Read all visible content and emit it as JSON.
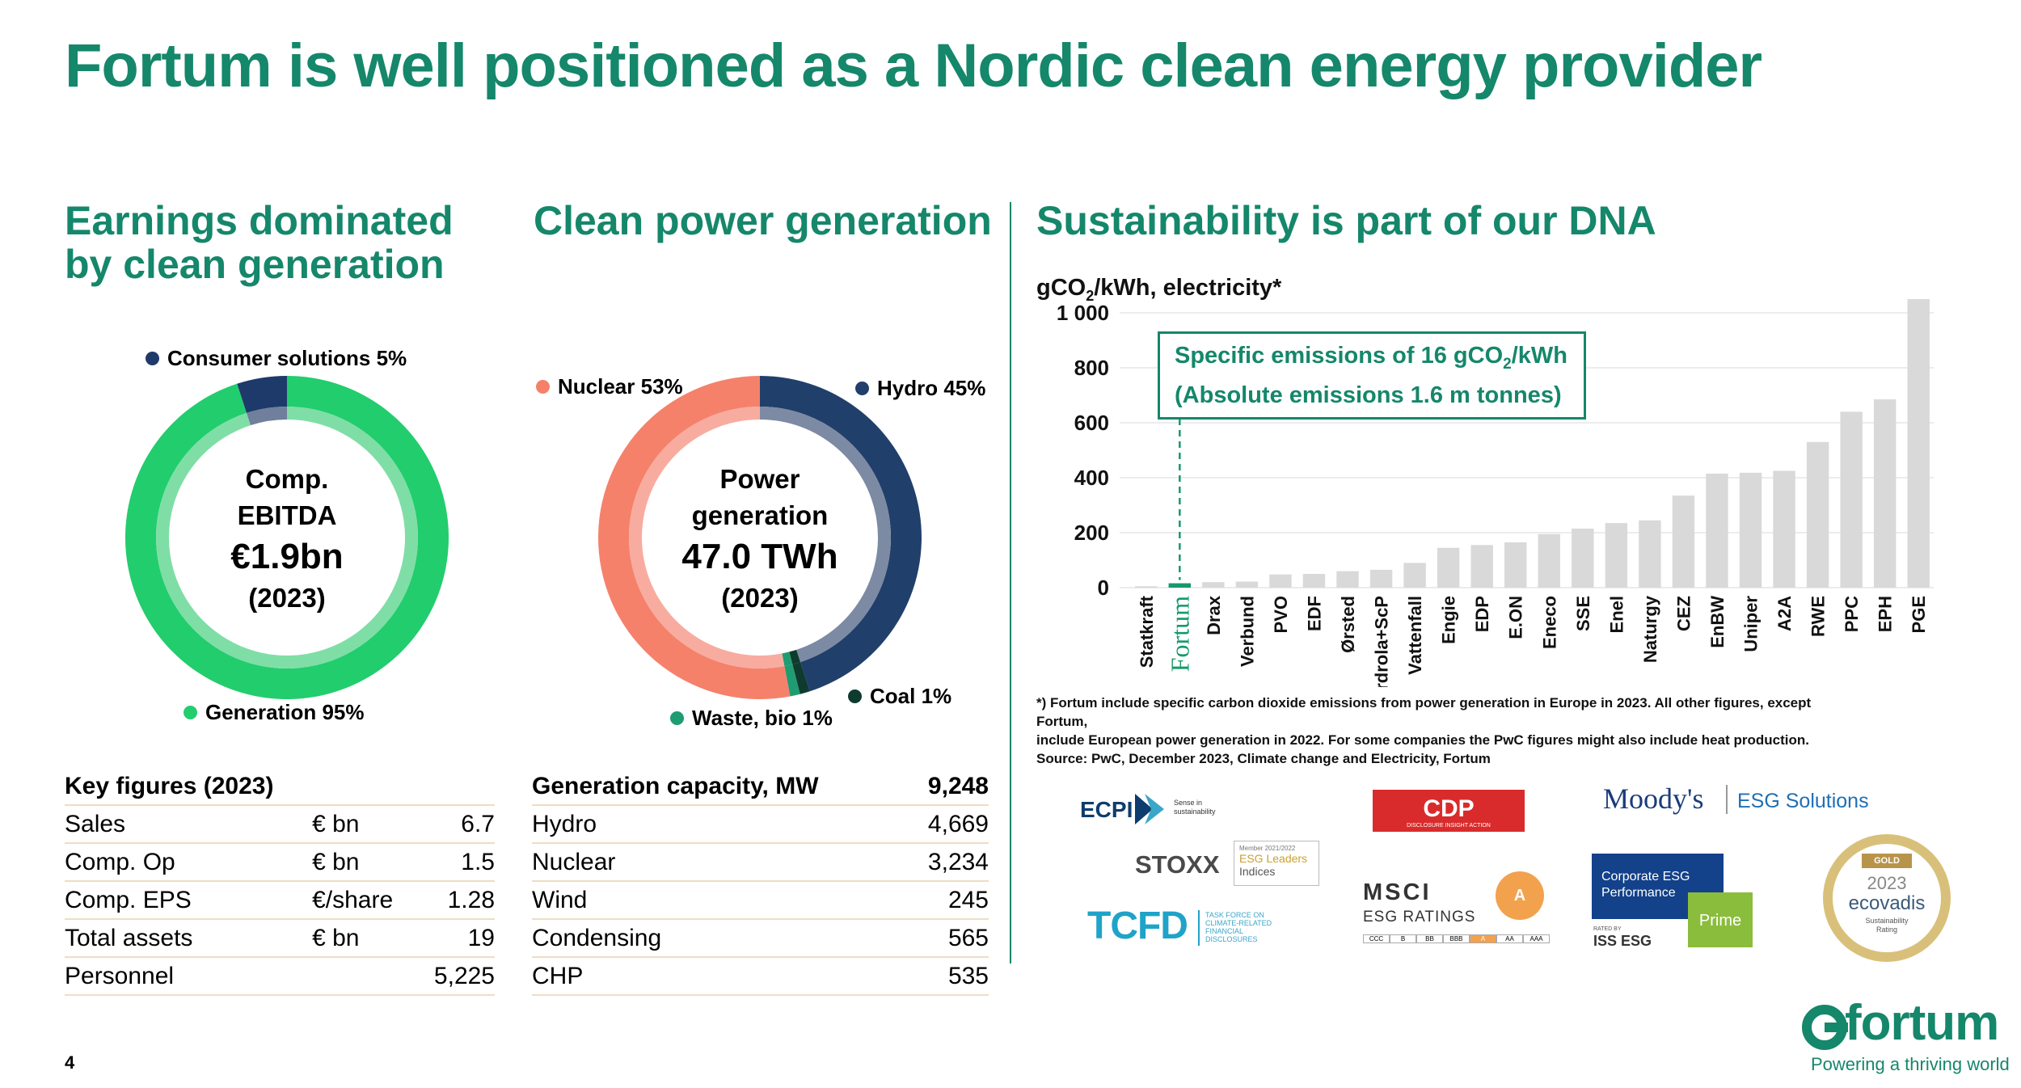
{
  "page": {
    "title": "Fortum is well positioned as a Nordic clean energy provider",
    "page_number": "4"
  },
  "colors": {
    "brand_green": "#15876b",
    "generation": "#22cd6d",
    "generation_light": "#7fdea6",
    "consumer": "#1e3a6a",
    "consumer_light": "#6f7f9c",
    "nuclear": "#f5816b",
    "nuclear_light": "#f8aca0",
    "hydro": "#213f6b",
    "hydro_light": "#7c8aa3",
    "waste_bio": "#1f9c72",
    "coal": "#0e3b2e",
    "bar": "#d9d9d9",
    "fortum_bar": "#159a6a"
  },
  "earnings": {
    "title_line1": "Earnings dominated",
    "title_line2": "by clean generation",
    "center_line1": "Comp.",
    "center_line2": "EBITDA",
    "center_value": "€1.9bn",
    "center_year": "(2023)",
    "legend_consumer": "Consumer solutions 5%",
    "legend_generation": "Generation 95%"
  },
  "clean_power": {
    "title": "Clean power generation",
    "center_line1": "Power",
    "center_line2": "generation",
    "center_value": "47.0 TWh",
    "center_year": "(2023)",
    "legend_nuclear": "Nuclear 53%",
    "legend_hydro": "Hydro 45%",
    "legend_coal": "Coal 1%",
    "legend_waste": "Waste, bio 1%"
  },
  "key_figures": {
    "header": "Key figures (2023)",
    "rows": [
      {
        "label": "Sales",
        "unit": "€ bn",
        "value": "6.7"
      },
      {
        "label": "Comp. Op",
        "unit": "€ bn",
        "value": "1.5"
      },
      {
        "label": "Comp. EPS",
        "unit": "€/share",
        "value": "1.28"
      },
      {
        "label": "Total assets",
        "unit": "€ bn",
        "value": "19"
      },
      {
        "label": "Personnel",
        "unit": "",
        "value": "5,225"
      }
    ]
  },
  "capacity": {
    "header": "Generation capacity, MW",
    "header_value": "9,248",
    "rows": [
      {
        "label": "Hydro",
        "value": "4,669"
      },
      {
        "label": "Nuclear",
        "value": "3,234"
      },
      {
        "label": "Wind",
        "value": "245"
      },
      {
        "label": "Condensing",
        "value": "565"
      },
      {
        "label": "CHP",
        "value": "535"
      }
    ]
  },
  "sustainability": {
    "title": "Sustainability is part of our DNA",
    "unit_prefix": "gCO",
    "unit_sub": "2",
    "unit_suffix": "/kWh, electricity*",
    "callout_line1_a": "Specific emissions of 16 gCO",
    "callout_line1_sub": "2",
    "callout_line1_b": "/kWh",
    "callout_line2": "(Absolute emissions 1.6 m tonnes)",
    "footnote_line1": "*) Fortum include specific carbon dioxide emissions from power generation in Europe in 2023. All other figures, except Fortum,",
    "footnote_line2": "include European power generation in 2022. For some companies the PwC figures might also include heat production.",
    "footnote_line3": "Source: PwC, December 2023, Climate change and Electricity, Fortum"
  },
  "chart_data": [
    {
      "type": "pie",
      "title": "Comp. EBITDA €1.9bn (2023)",
      "slices": [
        {
          "name": "Consumer solutions",
          "value": 5
        },
        {
          "name": "Generation",
          "value": 95
        }
      ]
    },
    {
      "type": "pie",
      "title": "Power generation 47.0 TWh (2023)",
      "slices": [
        {
          "name": "Hydro",
          "value": 45
        },
        {
          "name": "Coal",
          "value": 1
        },
        {
          "name": "Waste, bio",
          "value": 1
        },
        {
          "name": "Nuclear",
          "value": 53
        }
      ]
    },
    {
      "type": "bar",
      "ylabel": "gCO2/kWh, electricity*",
      "ylim": [
        0,
        1050
      ],
      "yticks": [
        0,
        200,
        400,
        600,
        800,
        1000
      ],
      "ytick_labels": [
        "0",
        "200",
        "400",
        "600",
        "800",
        "1 000"
      ],
      "grid": true,
      "highlight": "Fortum",
      "categories": [
        "Statkraft",
        "Fortum",
        "Drax",
        "Verbund",
        "PVO",
        "EDF",
        "Ørsted",
        "Iberdrola+ScP",
        "Vattenfall",
        "Engie",
        "EDP",
        "E.ON",
        "Eneco",
        "SSE",
        "Enel",
        "Naturgy",
        "CEZ",
        "EnBW",
        "Uniper",
        "A2A",
        "RWE",
        "PPC",
        "EPH",
        "PGE"
      ],
      "values": [
        5,
        16,
        20,
        22,
        48,
        50,
        60,
        65,
        90,
        145,
        155,
        165,
        195,
        215,
        235,
        245,
        335,
        415,
        418,
        425,
        530,
        640,
        685,
        1065
      ]
    }
  ],
  "brand": {
    "name": "fortum",
    "tagline": "Powering a thriving world"
  },
  "logos": {
    "ecpi": "ECPI",
    "ecpi_sub": "Sense in sustainability",
    "cdp": "CDP",
    "cdp_sub": "DISCLOSURE INSIGHT ACTION",
    "moodys": "Moody's",
    "moodys_sub": "ESG Solutions",
    "stoxx": "STOXX",
    "stoxx_member": "Member 2021/2022",
    "stoxx_esg": "ESG Leaders",
    "stoxx_indices": "Indices",
    "msci": "MSCI",
    "msci_sub": "ESG RATINGS",
    "msci_grade": "A",
    "msci_scale": [
      "CCC",
      "B",
      "BB",
      "BBB",
      "A",
      "AA",
      "AAA"
    ],
    "iss_title1": "Corporate ESG",
    "iss_title2": "Performance",
    "iss_prime": "Prime",
    "iss_rated": "RATED BY",
    "iss_name": "ISS ESG",
    "tcfd": "TCFD",
    "tcfd_sub1": "TASK FORCE ON",
    "tcfd_sub2": "CLIMATE-RELATED",
    "tcfd_sub3": "FINANCIAL",
    "tcfd_sub4": "DISCLOSURES",
    "ecovadis_gold": "GOLD",
    "ecovadis_year": "2023",
    "ecovadis_name": "ecovadis",
    "ecovadis_sub1": "Sustainability",
    "ecovadis_sub2": "Rating"
  }
}
